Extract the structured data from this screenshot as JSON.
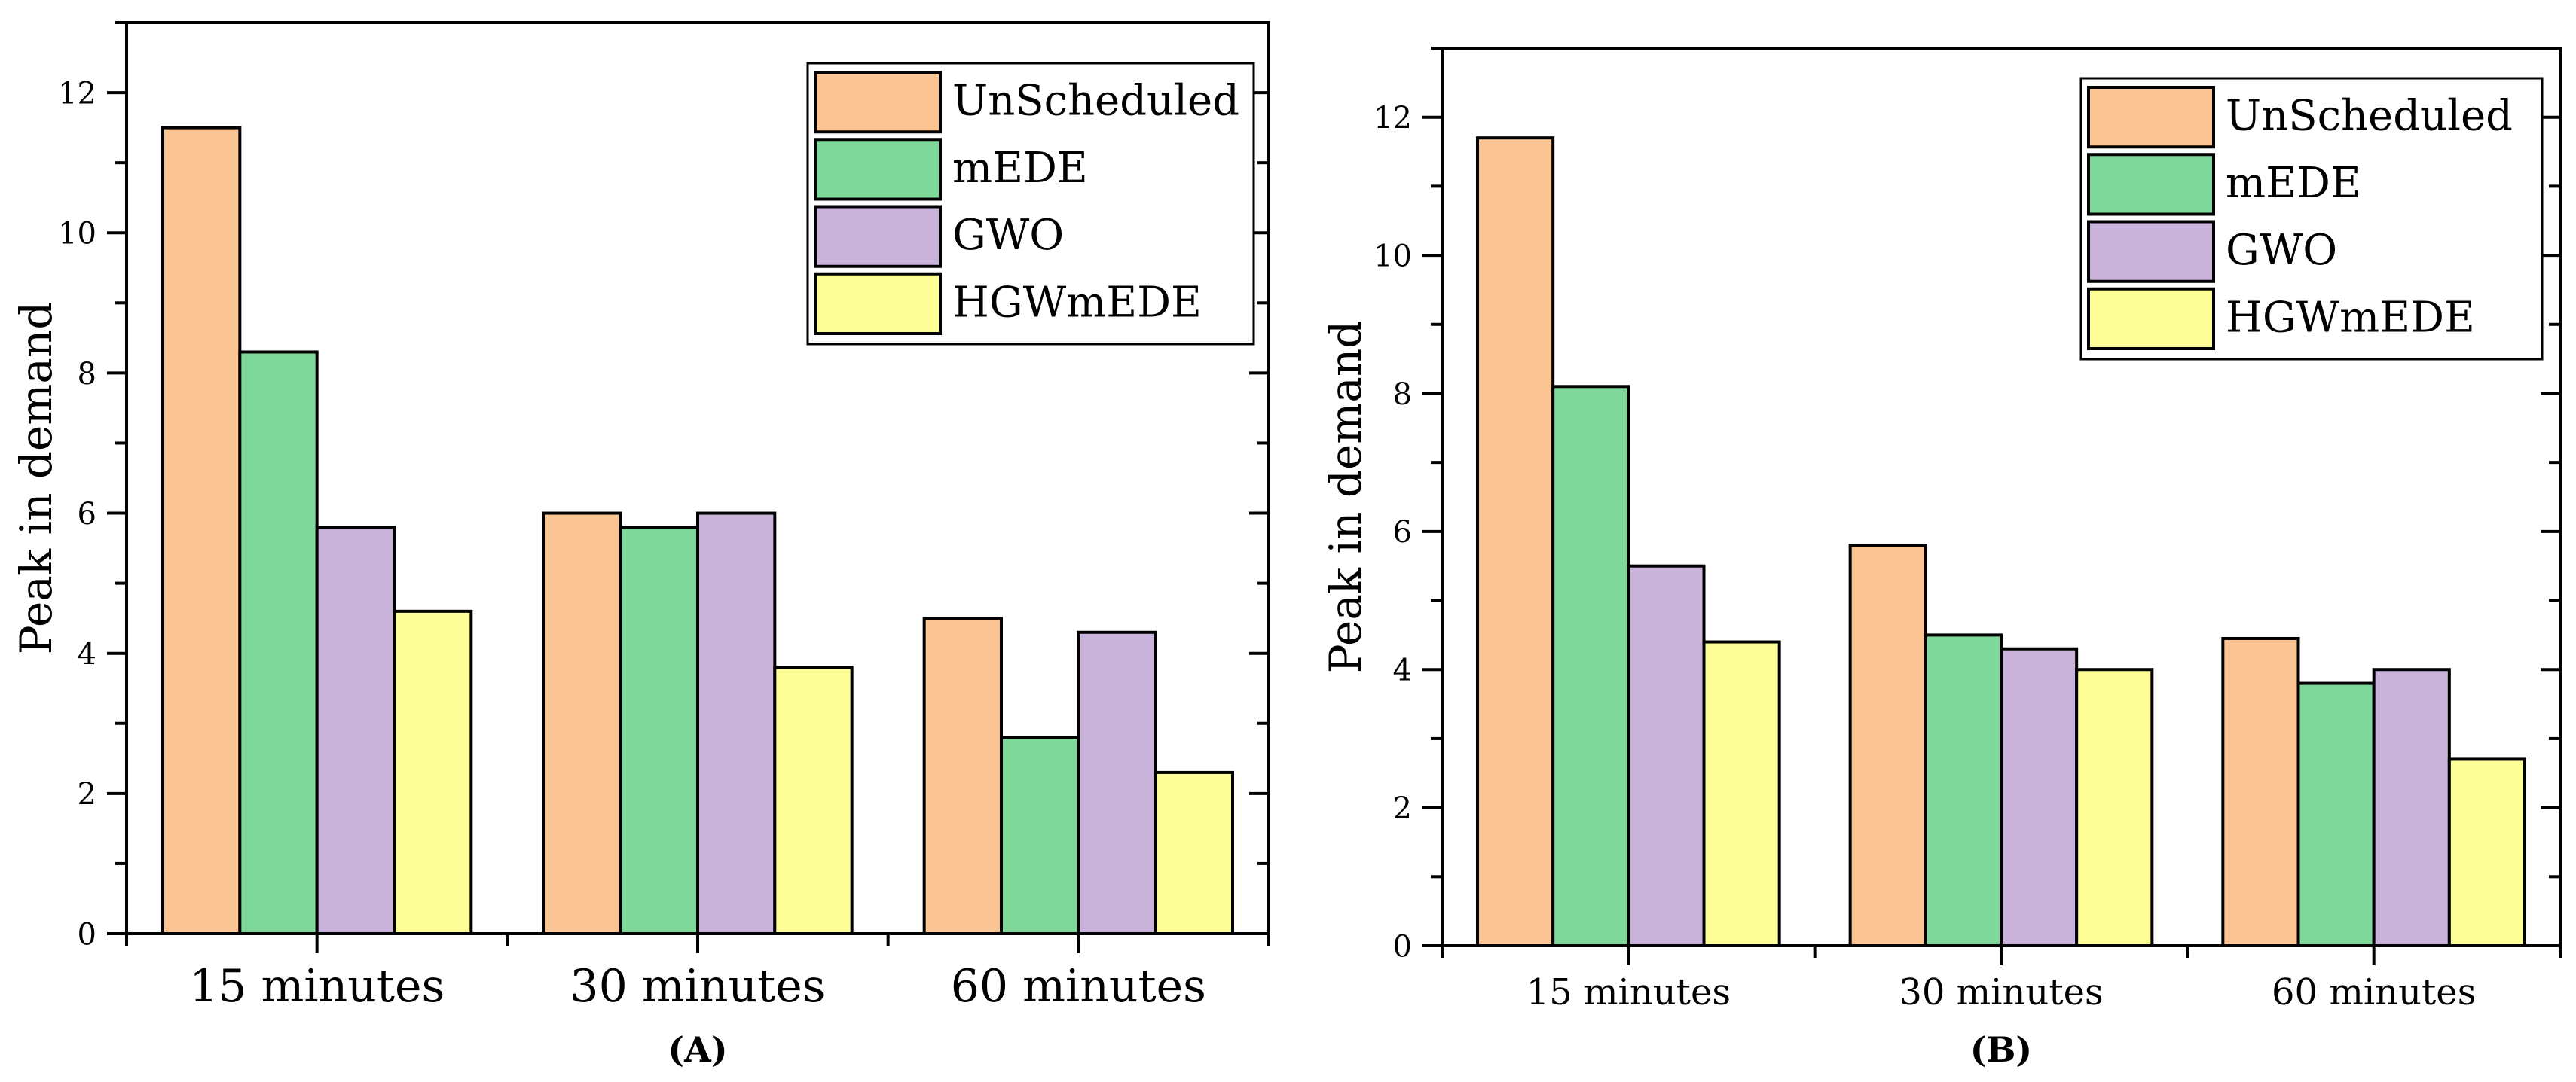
{
  "colors": {
    "UnScheduled": "#FBC593",
    "mEDE": "#7ED89A",
    "GWO": "#C9B3DA",
    "HGWmEDE": "#FEFE96"
  },
  "chart_data": [
    {
      "type": "bar",
      "panel_label": "(A)",
      "title": "",
      "xlabel": "",
      "ylabel": "Peak in demand",
      "ylim": [
        0,
        13
      ],
      "yticks": [
        0,
        2,
        4,
        6,
        8,
        10,
        12
      ],
      "categories": [
        "15 minutes",
        "30 minutes",
        "60 minutes"
      ],
      "legend_position": "top-right",
      "series": [
        {
          "name": "UnScheduled",
          "values": [
            11.5,
            6.0,
            4.5
          ]
        },
        {
          "name": "mEDE",
          "values": [
            8.3,
            5.8,
            2.8
          ]
        },
        {
          "name": "GWO",
          "values": [
            5.8,
            6.0,
            4.3
          ]
        },
        {
          "name": "HGWmEDE",
          "values": [
            4.6,
            3.8,
            2.3
          ]
        }
      ]
    },
    {
      "type": "bar",
      "panel_label": "(B)",
      "title": "",
      "xlabel": "",
      "ylabel": "Peak in demand",
      "ylim": [
        0,
        13
      ],
      "yticks": [
        0,
        2,
        4,
        6,
        8,
        10,
        12
      ],
      "categories": [
        "15 minutes",
        "30 minutes",
        "60 minutes"
      ],
      "legend_position": "top-right",
      "series": [
        {
          "name": "UnScheduled",
          "values": [
            11.7,
            5.8,
            4.45
          ]
        },
        {
          "name": "mEDE",
          "values": [
            8.1,
            4.5,
            3.8
          ]
        },
        {
          "name": "GWO",
          "values": [
            5.5,
            4.3,
            4.0
          ]
        },
        {
          "name": "HGWmEDE",
          "values": [
            4.4,
            4.0,
            2.7
          ]
        }
      ]
    }
  ]
}
